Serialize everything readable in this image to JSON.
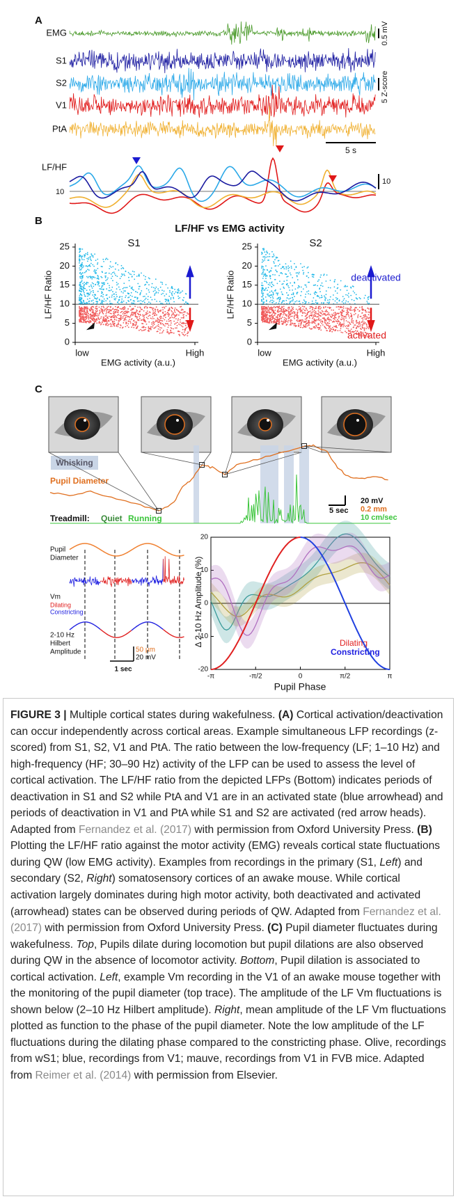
{
  "panel_a": {
    "label": "A",
    "traces": [
      "EMG",
      "S1",
      "S2",
      "V1",
      "PtA"
    ],
    "scale_emg": "0.5 mV",
    "scale_z": "5 Z-score",
    "scale_time": "5 s",
    "ratio_label": "LF/HF",
    "ratio_line_label": "10",
    "ratio_scale": "10"
  },
  "panel_b": {
    "label": "B",
    "title": "LF/HF vs EMG activity",
    "plots": [
      {
        "title": "S1"
      },
      {
        "title": "S2"
      }
    ],
    "y_label": "LF/HF Ratio",
    "x_label": "EMG activity (a.u.)",
    "x_low": "low",
    "x_high": "High",
    "y_ticks": [
      0,
      5,
      10,
      15,
      20,
      25
    ],
    "deactivated": "deactivated",
    "activated": "activated"
  },
  "panel_c": {
    "label": "C",
    "whisking": "Whisking",
    "pupil_diameter": "Pupil Diameter",
    "treadmill": "Treadmill:",
    "quiet": "Quiet",
    "running": "Running",
    "scale_time": "5 sec",
    "scale_mv": "20 mV",
    "scale_mm": "0.2 mm",
    "scale_speed": "10 cm/sec",
    "left": {
      "pupil": "Pupil",
      "diameter": "Diameter",
      "vm": "Vm",
      "dilating": "Dilating",
      "constricting": "Constricting",
      "hilbert": [
        "2-10 Hz",
        "Hilbert",
        "Amplitude"
      ],
      "scale_um": "50 µm",
      "scale_mv": "20 mV",
      "scale_time": "1 sec"
    },
    "right": {
      "y_label": "Δ 2-10 Hz Amplitude (%)",
      "y_ticks": [
        "20",
        "10",
        "0",
        "-10",
        "-20"
      ],
      "x_ticks": [
        "-π",
        "-π/2",
        "0",
        "π/2",
        "π"
      ],
      "x_label": "Pupil Phase",
      "dilating": "Dilating",
      "constricting": "Constricting"
    }
  },
  "caption": {
    "segments": [
      "FIGURE 3 |",
      " Multiple cortical states during wakefulness. ",
      "(A)",
      " Cortical activation/deactivation can occur independently across cortical areas. Example simultaneous LFP recordings (z-scored) from S1, S2, V1 and PtA. The ratio between the low-frequency (LF; 1–10 Hz) and high-frequency (HF; 30–90 Hz) activity of the LFP can be used to assess the level of cortical activation. The LF/HF ratio from the depicted LFPs (Bottom) indicates periods of deactivation in S1 and S2 while PtA and V1 are in an activated state (blue arrowhead) and periods of deactivation in V1 and PtA while S1 and S2 are activated (red arrow heads). Adapted from ",
      "Fernandez et al. (2017)",
      " with permission from Oxford University Press. ",
      "(B)",
      " Plotting the LF/HF ratio against the motor activity (EMG) reveals cortical state fluctuations during QW (low EMG activity). Examples from recordings in the primary (S1, ",
      "Left",
      ") and secondary (S2, ",
      "Right",
      ") somatosensory cortices of an awake mouse. While cortical activation largely dominates during high motor activity, both deactivated and activated (arrowhead) states can be observed during periods of QW. Adapted from ",
      "Fernandez et al. (2017)",
      " with permission from Oxford University Press. ",
      "(C)",
      " Pupil diameter fluctuates during wakefulness. ",
      "Top",
      ", Pupils dilate during locomotion but pupil dilations are also observed during QW in the absence of locomotor activity. ",
      "Bottom",
      ", Pupil dilation is associated to cortical activation. ",
      "Left",
      ", example Vm recording in the V1 of an awake mouse together with the monitoring of the pupil diameter (top trace). The amplitude of the LF Vm fluctuations is shown below (2–10 Hz Hilbert amplitude). ",
      "Right",
      ", mean amplitude of the LF Vm fluctuations plotted as function to the phase of the pupil diameter. Note the low amplitude of the LF fluctuations during the dilating phase compared to the constricting phase. Olive, recordings from wS1; blue, recordings from V1; mauve, recordings from V1 in FVB mice. Adapted from ",
      "Reimer et al. (2014)",
      " with permission from Elsevier."
    ]
  }
}
